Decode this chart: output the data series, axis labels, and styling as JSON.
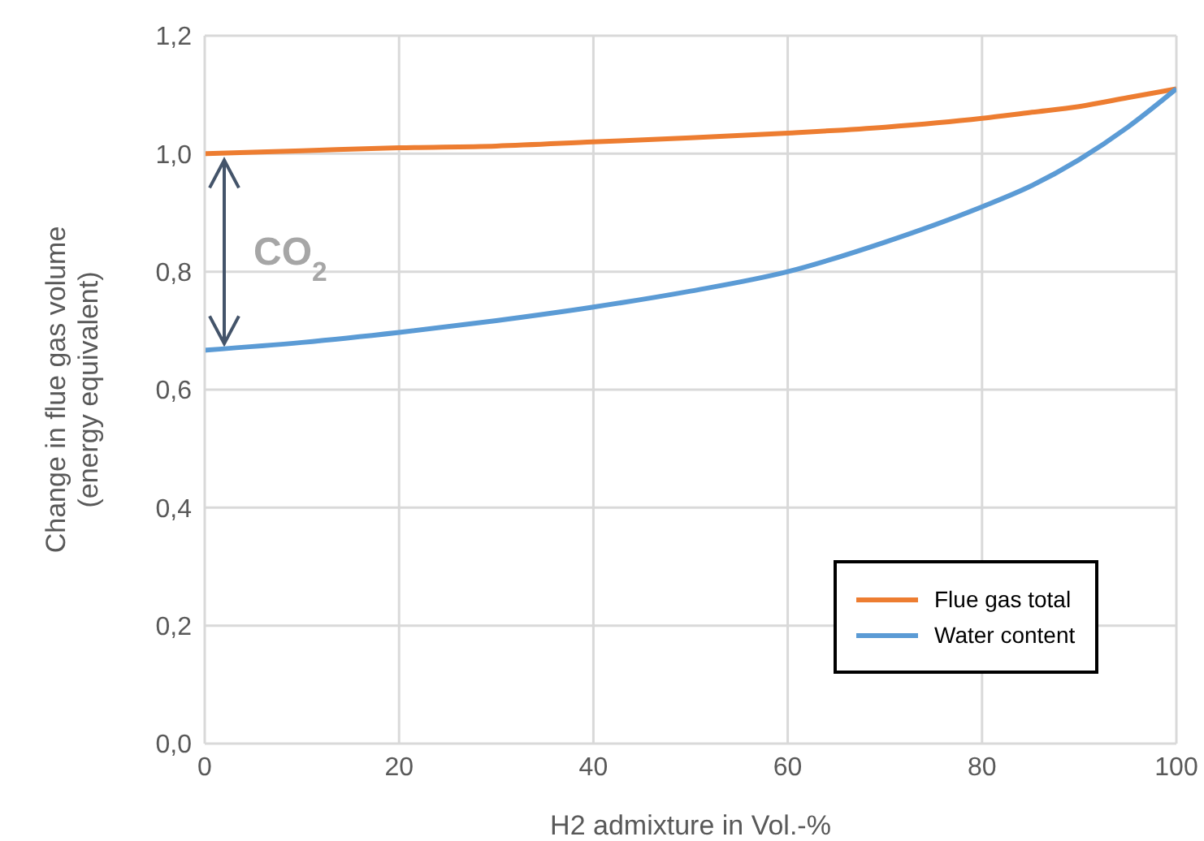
{
  "chart_data": {
    "type": "line",
    "xlabel": "H2 admixture in Vol.-%",
    "ylabel": "Change in flue gas volume\n(energy equivalent)",
    "x": [
      0,
      10,
      20,
      30,
      40,
      50,
      60,
      70,
      80,
      85,
      90,
      95,
      100
    ],
    "series": [
      {
        "name": "Flue gas total",
        "color": "#ed7d31",
        "values": [
          1.0,
          1.005,
          1.01,
          1.013,
          1.02,
          1.027,
          1.035,
          1.045,
          1.06,
          1.07,
          1.08,
          1.095,
          1.11
        ]
      },
      {
        "name": "Water content",
        "color": "#5b9bd5",
        "values": [
          0.667,
          0.68,
          0.697,
          0.717,
          0.74,
          0.767,
          0.8,
          0.85,
          0.91,
          0.945,
          0.99,
          1.045,
          1.11
        ]
      }
    ],
    "xlim": [
      0,
      100
    ],
    "xticks": [
      0,
      20,
      40,
      60,
      80,
      100
    ],
    "ylim": [
      0,
      1.2
    ],
    "yticks": [
      {
        "value": 0,
        "label": "0,0"
      },
      {
        "value": 0.2,
        "label": "0,2"
      },
      {
        "value": 0.4,
        "label": "0,4"
      },
      {
        "value": 0.6,
        "label": "0,6"
      },
      {
        "value": 0.8,
        "label": "0,8"
      },
      {
        "value": 1.0,
        "label": "1,0"
      },
      {
        "value": 1.2,
        "label": "1,2"
      }
    ],
    "grid": true,
    "legend": "bottom right",
    "marker": "none",
    "line_style": "solid",
    "annotations": [
      "CO$_{2}$"
    ]
  }
}
